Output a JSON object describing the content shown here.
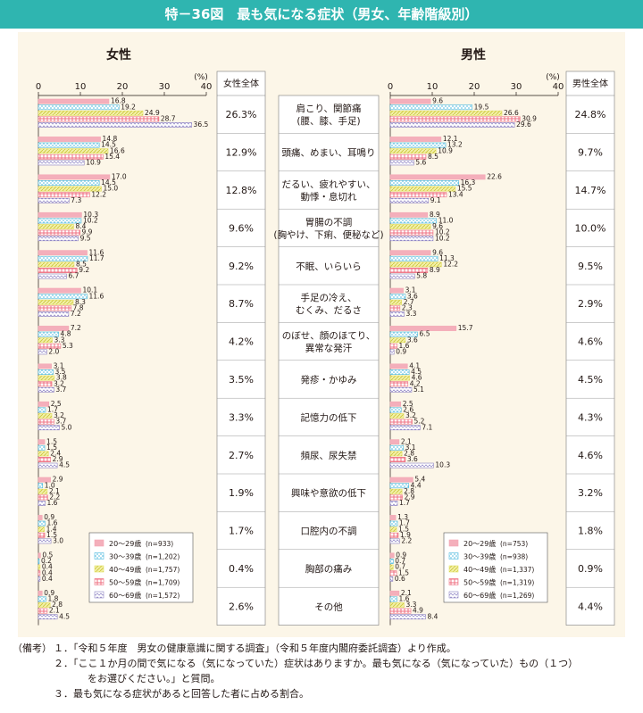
{
  "title": "特－36図　最も気になる症状（男女、年齢階級別）",
  "female_label": "女性",
  "male_label": "男性",
  "unit": "(%)",
  "female_total_header": "女性全体",
  "male_total_header": "男性全体",
  "notes": {
    "key": "（備考）",
    "lines": [
      "１．「令和５年度　男女の健康意識に関する調査」（令和５年度内閣府委託調査）より作成。",
      "２．「ここ１か月の間で気になる（気になっていた）症状はありますか。最も気になる（気になっていた）もの（１つ）",
      "をお選びください。」と質問。",
      "３．最も気になる症状があると回答した者に占める割合。"
    ]
  },
  "colors": {
    "banner": "#2fb5b0",
    "panel": "#fcf6e8",
    "age20": "#f3a7b4",
    "age30": "#4ab8de",
    "age40": "#e3df63",
    "age50": "#ef6f80",
    "age60": "#8e83c4"
  },
  "chart_data": {
    "type": "bar",
    "orientation": "horizontal",
    "xlim": [
      0,
      40
    ],
    "xticks": [
      0,
      10,
      20,
      30,
      40
    ],
    "categories": [
      "肩こり、関節痛\n(腰、膝、手足)",
      "頭痛、めまい、耳鳴り",
      "だるい、疲れやすい、\n動悸・息切れ",
      "胃腸の不調\n(胸やけ、下痢、便秘など)",
      "不眠、いらいら",
      "手足の冷え、\nむくみ、だるさ",
      "のぼせ、顔のほてり、\n異常な発汗",
      "発疹・かゆみ",
      "記憶力の低下",
      "頻尿、尿失禁",
      "興味や意欲の低下",
      "口腔内の不調",
      "胸部の痛み",
      "その他"
    ],
    "female": {
      "total": [
        "26.3%",
        "12.9%",
        "12.8%",
        "9.6%",
        "9.2%",
        "8.7%",
        "4.2%",
        "3.5%",
        "3.3%",
        "2.7%",
        "1.9%",
        "1.7%",
        "0.4%",
        "2.6%"
      ],
      "series": [
        {
          "name": "20～29歳",
          "n": "(n=933)",
          "values": [
            16.8,
            14.8,
            17.0,
            10.3,
            11.6,
            10.1,
            7.2,
            3.1,
            2.5,
            1.5,
            2.9,
            0.9,
            0.5,
            0.9
          ]
        },
        {
          "name": "30～39歳",
          "n": "(n=1,202)",
          "values": [
            19.2,
            14.5,
            14.5,
            10.2,
            11.7,
            11.6,
            4.8,
            3.5,
            1.7,
            1.5,
            1.0,
            1.6,
            0.2,
            1.8
          ]
        },
        {
          "name": "40～49歳",
          "n": "(n=1,757)",
          "values": [
            24.9,
            16.6,
            15.0,
            8.4,
            8.5,
            8.3,
            3.3,
            3.8,
            3.2,
            2.4,
            2.1,
            1.4,
            0.4,
            2.8
          ]
        },
        {
          "name": "50～59歳",
          "n": "(n=1,709)",
          "values": [
            28.7,
            15.4,
            12.2,
            9.9,
            9.2,
            7.8,
            5.3,
            3.2,
            3.7,
            2.9,
            2.2,
            1.5,
            0.4,
            2.1
          ]
        },
        {
          "name": "60～69歳",
          "n": "(n=1,572)",
          "values": [
            36.5,
            10.9,
            7.3,
            9.5,
            6.7,
            7.2,
            2.0,
            3.7,
            5.0,
            4.5,
            1.6,
            3.0,
            0.4,
            4.5
          ]
        }
      ]
    },
    "male": {
      "total": [
        "24.8%",
        "9.7%",
        "14.7%",
        "10.0%",
        "9.5%",
        "2.9%",
        "4.6%",
        "4.5%",
        "4.3%",
        "4.6%",
        "3.2%",
        "1.8%",
        "0.9%",
        "4.4%"
      ],
      "series": [
        {
          "name": "20～29歳",
          "n": "(n=753)",
          "values": [
            9.6,
            12.1,
            22.6,
            8.9,
            9.6,
            3.1,
            15.7,
            4.1,
            2.5,
            2.1,
            5.4,
            1.3,
            0.9,
            2.1
          ]
        },
        {
          "name": "30～39歳",
          "n": "(n=938)",
          "values": [
            19.5,
            13.2,
            16.3,
            11.0,
            11.3,
            3.6,
            6.5,
            4.5,
            2.6,
            3.1,
            4.4,
            1.7,
            0.7,
            1.6
          ]
        },
        {
          "name": "40～49歳",
          "n": "(n=1,337)",
          "values": [
            26.6,
            10.9,
            15.5,
            9.6,
            12.2,
            2.7,
            3.6,
            4.6,
            3.2,
            2.8,
            2.8,
            1.5,
            0.7,
            3.3
          ]
        },
        {
          "name": "50～59歳",
          "n": "(n=1,319)",
          "values": [
            30.9,
            8.5,
            13.4,
            10.2,
            8.9,
            2.3,
            1.6,
            4.2,
            5.2,
            3.6,
            2.9,
            1.9,
            1.5,
            4.9
          ]
        },
        {
          "name": "60～69歳",
          "n": "(n=1,269)",
          "values": [
            29.6,
            5.6,
            9.1,
            10.2,
            5.8,
            3.3,
            0.9,
            5.1,
            7.1,
            10.3,
            1.7,
            2.2,
            0.6,
            8.4
          ]
        }
      ]
    }
  }
}
